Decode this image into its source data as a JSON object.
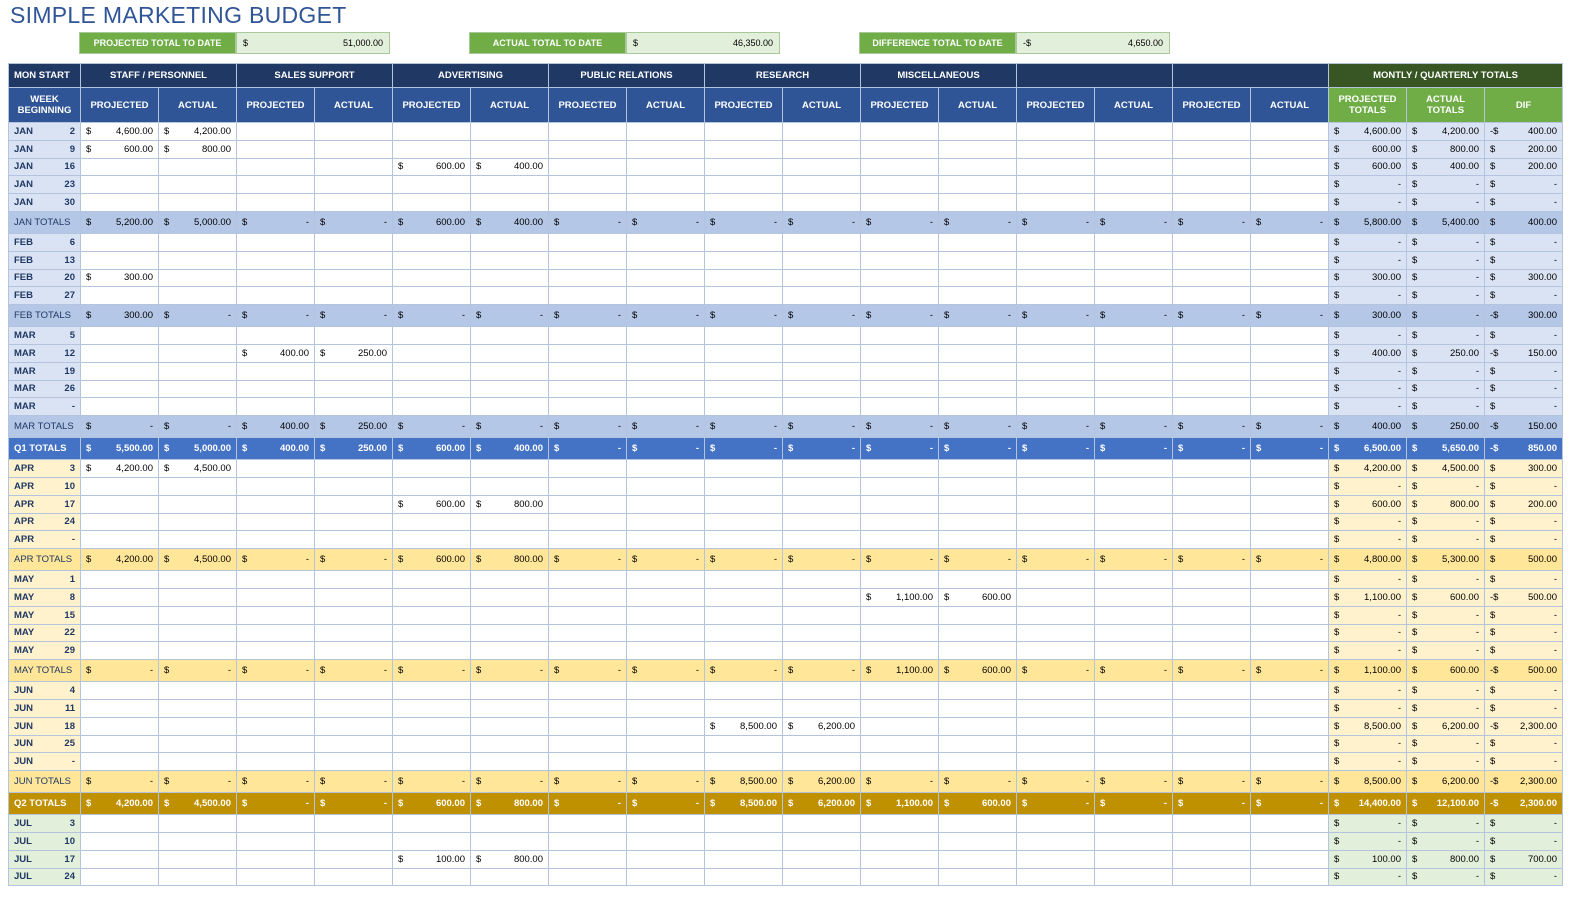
{
  "title": "SIMPLE MARKETING BUDGET",
  "currency": "$",
  "summary": [
    {
      "label": "PROJECTED TOTAL TO DATE",
      "sym": "$",
      "value": "51,000.00"
    },
    {
      "label": "ACTUAL TOTAL TO DATE",
      "sym": "$",
      "value": "46,350.00"
    },
    {
      "label": "DIFFERENCE TOTAL TO DATE",
      "sym": "-$",
      "value": "4,650.00"
    }
  ],
  "header": {
    "first": "MON START",
    "week": "WEEK BEGINNING",
    "groups": [
      "STAFF / PERSONNEL",
      "SALES SUPPORT",
      "ADVERTISING",
      "PUBLIC RELATIONS",
      "RESEARCH",
      "MISCELLANEOUS",
      null,
      null
    ],
    "sub": [
      "PROJECTED",
      "ACTUAL"
    ],
    "totals_title": "MONTLY / QUARTERLY TOTALS",
    "totals_sub": [
      "PROJECTED TOTALS",
      "ACTUAL TOTALS",
      "DIF"
    ]
  },
  "rows": [
    {
      "month": "JAN",
      "day": "2",
      "cells": {
        "0": "4,600.00",
        "1": "4,200.00"
      },
      "totals": [
        "4,600.00",
        "4,200.00",
        "400.00"
      ],
      "dif_sym": "-$"
    },
    {
      "month": "JAN",
      "day": "9",
      "cells": {
        "0": "600.00",
        "1": "800.00"
      },
      "totals": [
        "600.00",
        "800.00",
        "200.00"
      ]
    },
    {
      "month": "JAN",
      "day": "16",
      "cells": {
        "4": "600.00",
        "5": "400.00"
      },
      "totals": [
        "600.00",
        "400.00",
        "200.00"
      ]
    },
    {
      "month": "JAN",
      "day": "23",
      "totals": [
        "-",
        "-",
        "-"
      ]
    },
    {
      "month": "JAN",
      "day": "30",
      "totals": [
        "-",
        "-",
        "-"
      ]
    },
    {
      "label": "JAN TOTALS",
      "kind": "month",
      "cells": [
        "5,200.00",
        "5,000.00",
        "-",
        "-",
        "600.00",
        "400.00",
        "-",
        "-",
        "-",
        "-",
        "-",
        "-",
        "-",
        "-",
        "-",
        "-"
      ],
      "totals": [
        "5,800.00",
        "5,400.00",
        "400.00"
      ]
    },
    {
      "month": "FEB",
      "day": "6",
      "totals": [
        "-",
        "-",
        "-"
      ]
    },
    {
      "month": "FEB",
      "day": "13",
      "totals": [
        "-",
        "-",
        "-"
      ]
    },
    {
      "month": "FEB",
      "day": "20",
      "cells": {
        "0": "300.00"
      },
      "totals": [
        "300.00",
        "-",
        "300.00"
      ]
    },
    {
      "month": "FEB",
      "day": "27",
      "totals": [
        "-",
        "-",
        "-"
      ]
    },
    {
      "label": "FEB TOTALS",
      "kind": "month",
      "cells": [
        "300.00",
        "-",
        "-",
        "-",
        "-",
        "-",
        "-",
        "-",
        "-",
        "-",
        "-",
        "-",
        "-",
        "-",
        "-",
        "-"
      ],
      "totals": [
        "300.00",
        "-",
        "300.00"
      ],
      "dif_sym": "-$"
    },
    {
      "month": "MAR",
      "day": "5",
      "totals": [
        "-",
        "-",
        "-"
      ]
    },
    {
      "month": "MAR",
      "day": "12",
      "cells": {
        "2": "400.00",
        "3": "250.00"
      },
      "totals": [
        "400.00",
        "250.00",
        "150.00"
      ],
      "dif_sym": "-$"
    },
    {
      "month": "MAR",
      "day": "19",
      "totals": [
        "-",
        "-",
        "-"
      ]
    },
    {
      "month": "MAR",
      "day": "26",
      "totals": [
        "-",
        "-",
        "-"
      ]
    },
    {
      "month": "MAR",
      "day": "-",
      "totals": [
        "-",
        "-",
        "-"
      ]
    },
    {
      "label": "MAR TOTALS",
      "kind": "month",
      "cells": [
        "-",
        "-",
        "400.00",
        "250.00",
        "-",
        "-",
        "-",
        "-",
        "-",
        "-",
        "-",
        "-",
        "-",
        "-",
        "-",
        "-"
      ],
      "totals": [
        "400.00",
        "250.00",
        "150.00"
      ],
      "dif_sym": "-$"
    },
    {
      "label": "Q1 TOTALS",
      "kind": "quarter",
      "cells": [
        "5,500.00",
        "5,000.00",
        "400.00",
        "250.00",
        "600.00",
        "400.00",
        "-",
        "-",
        "-",
        "-",
        "-",
        "-",
        "-",
        "-",
        "-",
        "-"
      ],
      "totals": [
        "6,500.00",
        "5,650.00",
        "850.00"
      ],
      "dif_sym": "-$"
    },
    {
      "month": "APR",
      "day": "3",
      "cells": {
        "0": "4,200.00",
        "1": "4,500.00"
      },
      "totals": [
        "4,200.00",
        "4,500.00",
        "300.00"
      ]
    },
    {
      "month": "APR",
      "day": "10",
      "totals": [
        "-",
        "-",
        "-"
      ]
    },
    {
      "month": "APR",
      "day": "17",
      "cells": {
        "4": "600.00",
        "5": "800.00"
      },
      "totals": [
        "600.00",
        "800.00",
        "200.00"
      ]
    },
    {
      "month": "APR",
      "day": "24",
      "totals": [
        "-",
        "-",
        "-"
      ]
    },
    {
      "month": "APR",
      "day": "-",
      "totals": [
        "-",
        "-",
        "-"
      ]
    },
    {
      "label": "APR TOTALS",
      "kind": "month",
      "cells": [
        "4,200.00",
        "4,500.00",
        "-",
        "-",
        "600.00",
        "800.00",
        "-",
        "-",
        "-",
        "-",
        "-",
        "-",
        "-",
        "-",
        "-",
        "-"
      ],
      "totals": [
        "4,800.00",
        "5,300.00",
        "500.00"
      ]
    },
    {
      "month": "MAY",
      "day": "1",
      "totals": [
        "-",
        "-",
        "-"
      ]
    },
    {
      "month": "MAY",
      "day": "8",
      "cells": {
        "10": "1,100.00",
        "11": "600.00"
      },
      "totals": [
        "1,100.00",
        "600.00",
        "500.00"
      ],
      "dif_sym": "-$"
    },
    {
      "month": "MAY",
      "day": "15",
      "totals": [
        "-",
        "-",
        "-"
      ]
    },
    {
      "month": "MAY",
      "day": "22",
      "totals": [
        "-",
        "-",
        "-"
      ]
    },
    {
      "month": "MAY",
      "day": "29",
      "totals": [
        "-",
        "-",
        "-"
      ]
    },
    {
      "label": "MAY TOTALS",
      "kind": "month",
      "cells": [
        "-",
        "-",
        "-",
        "-",
        "-",
        "-",
        "-",
        "-",
        "-",
        "-",
        "1,100.00",
        "600.00",
        "-",
        "-",
        "-",
        "-"
      ],
      "totals": [
        "1,100.00",
        "600.00",
        "500.00"
      ],
      "dif_sym": "-$"
    },
    {
      "month": "JUN",
      "day": "4",
      "totals": [
        "-",
        "-",
        "-"
      ]
    },
    {
      "month": "JUN",
      "day": "11",
      "totals": [
        "-",
        "-",
        "-"
      ]
    },
    {
      "month": "JUN",
      "day": "18",
      "cells": {
        "8": "8,500.00",
        "9": "6,200.00"
      },
      "totals": [
        "8,500.00",
        "6,200.00",
        "2,300.00"
      ],
      "dif_sym": "-$"
    },
    {
      "month": "JUN",
      "day": "25",
      "totals": [
        "-",
        "-",
        "-"
      ]
    },
    {
      "month": "JUN",
      "day": "-",
      "totals": [
        "-",
        "-",
        "-"
      ]
    },
    {
      "label": "JUN TOTALS",
      "kind": "month",
      "cells": [
        "-",
        "-",
        "-",
        "-",
        "-",
        "-",
        "-",
        "-",
        "8,500.00",
        "6,200.00",
        "-",
        "-",
        "-",
        "-",
        "-",
        "-"
      ],
      "totals": [
        "8,500.00",
        "6,200.00",
        "2,300.00"
      ],
      "dif_sym": "-$"
    },
    {
      "label": "Q2 TOTALS",
      "kind": "quarter",
      "cells": [
        "4,200.00",
        "4,500.00",
        "-",
        "-",
        "600.00",
        "800.00",
        "-",
        "-",
        "8,500.00",
        "6,200.00",
        "1,100.00",
        "600.00",
        "-",
        "-",
        "-",
        "-"
      ],
      "totals": [
        "14,400.00",
        "12,100.00",
        "2,300.00"
      ],
      "dif_sym": "-$"
    },
    {
      "month": "JUL",
      "day": "3",
      "totals": [
        "-",
        "-",
        "-"
      ]
    },
    {
      "month": "JUL",
      "day": "10",
      "totals": [
        "-",
        "-",
        "-"
      ]
    },
    {
      "month": "JUL",
      "day": "17",
      "cells": {
        "4": "100.00",
        "5": "800.00"
      },
      "totals": [
        "100.00",
        "800.00",
        "700.00"
      ]
    },
    {
      "month": "JUL",
      "day": "24",
      "totals": [
        "-",
        "-",
        "-"
      ]
    }
  ]
}
